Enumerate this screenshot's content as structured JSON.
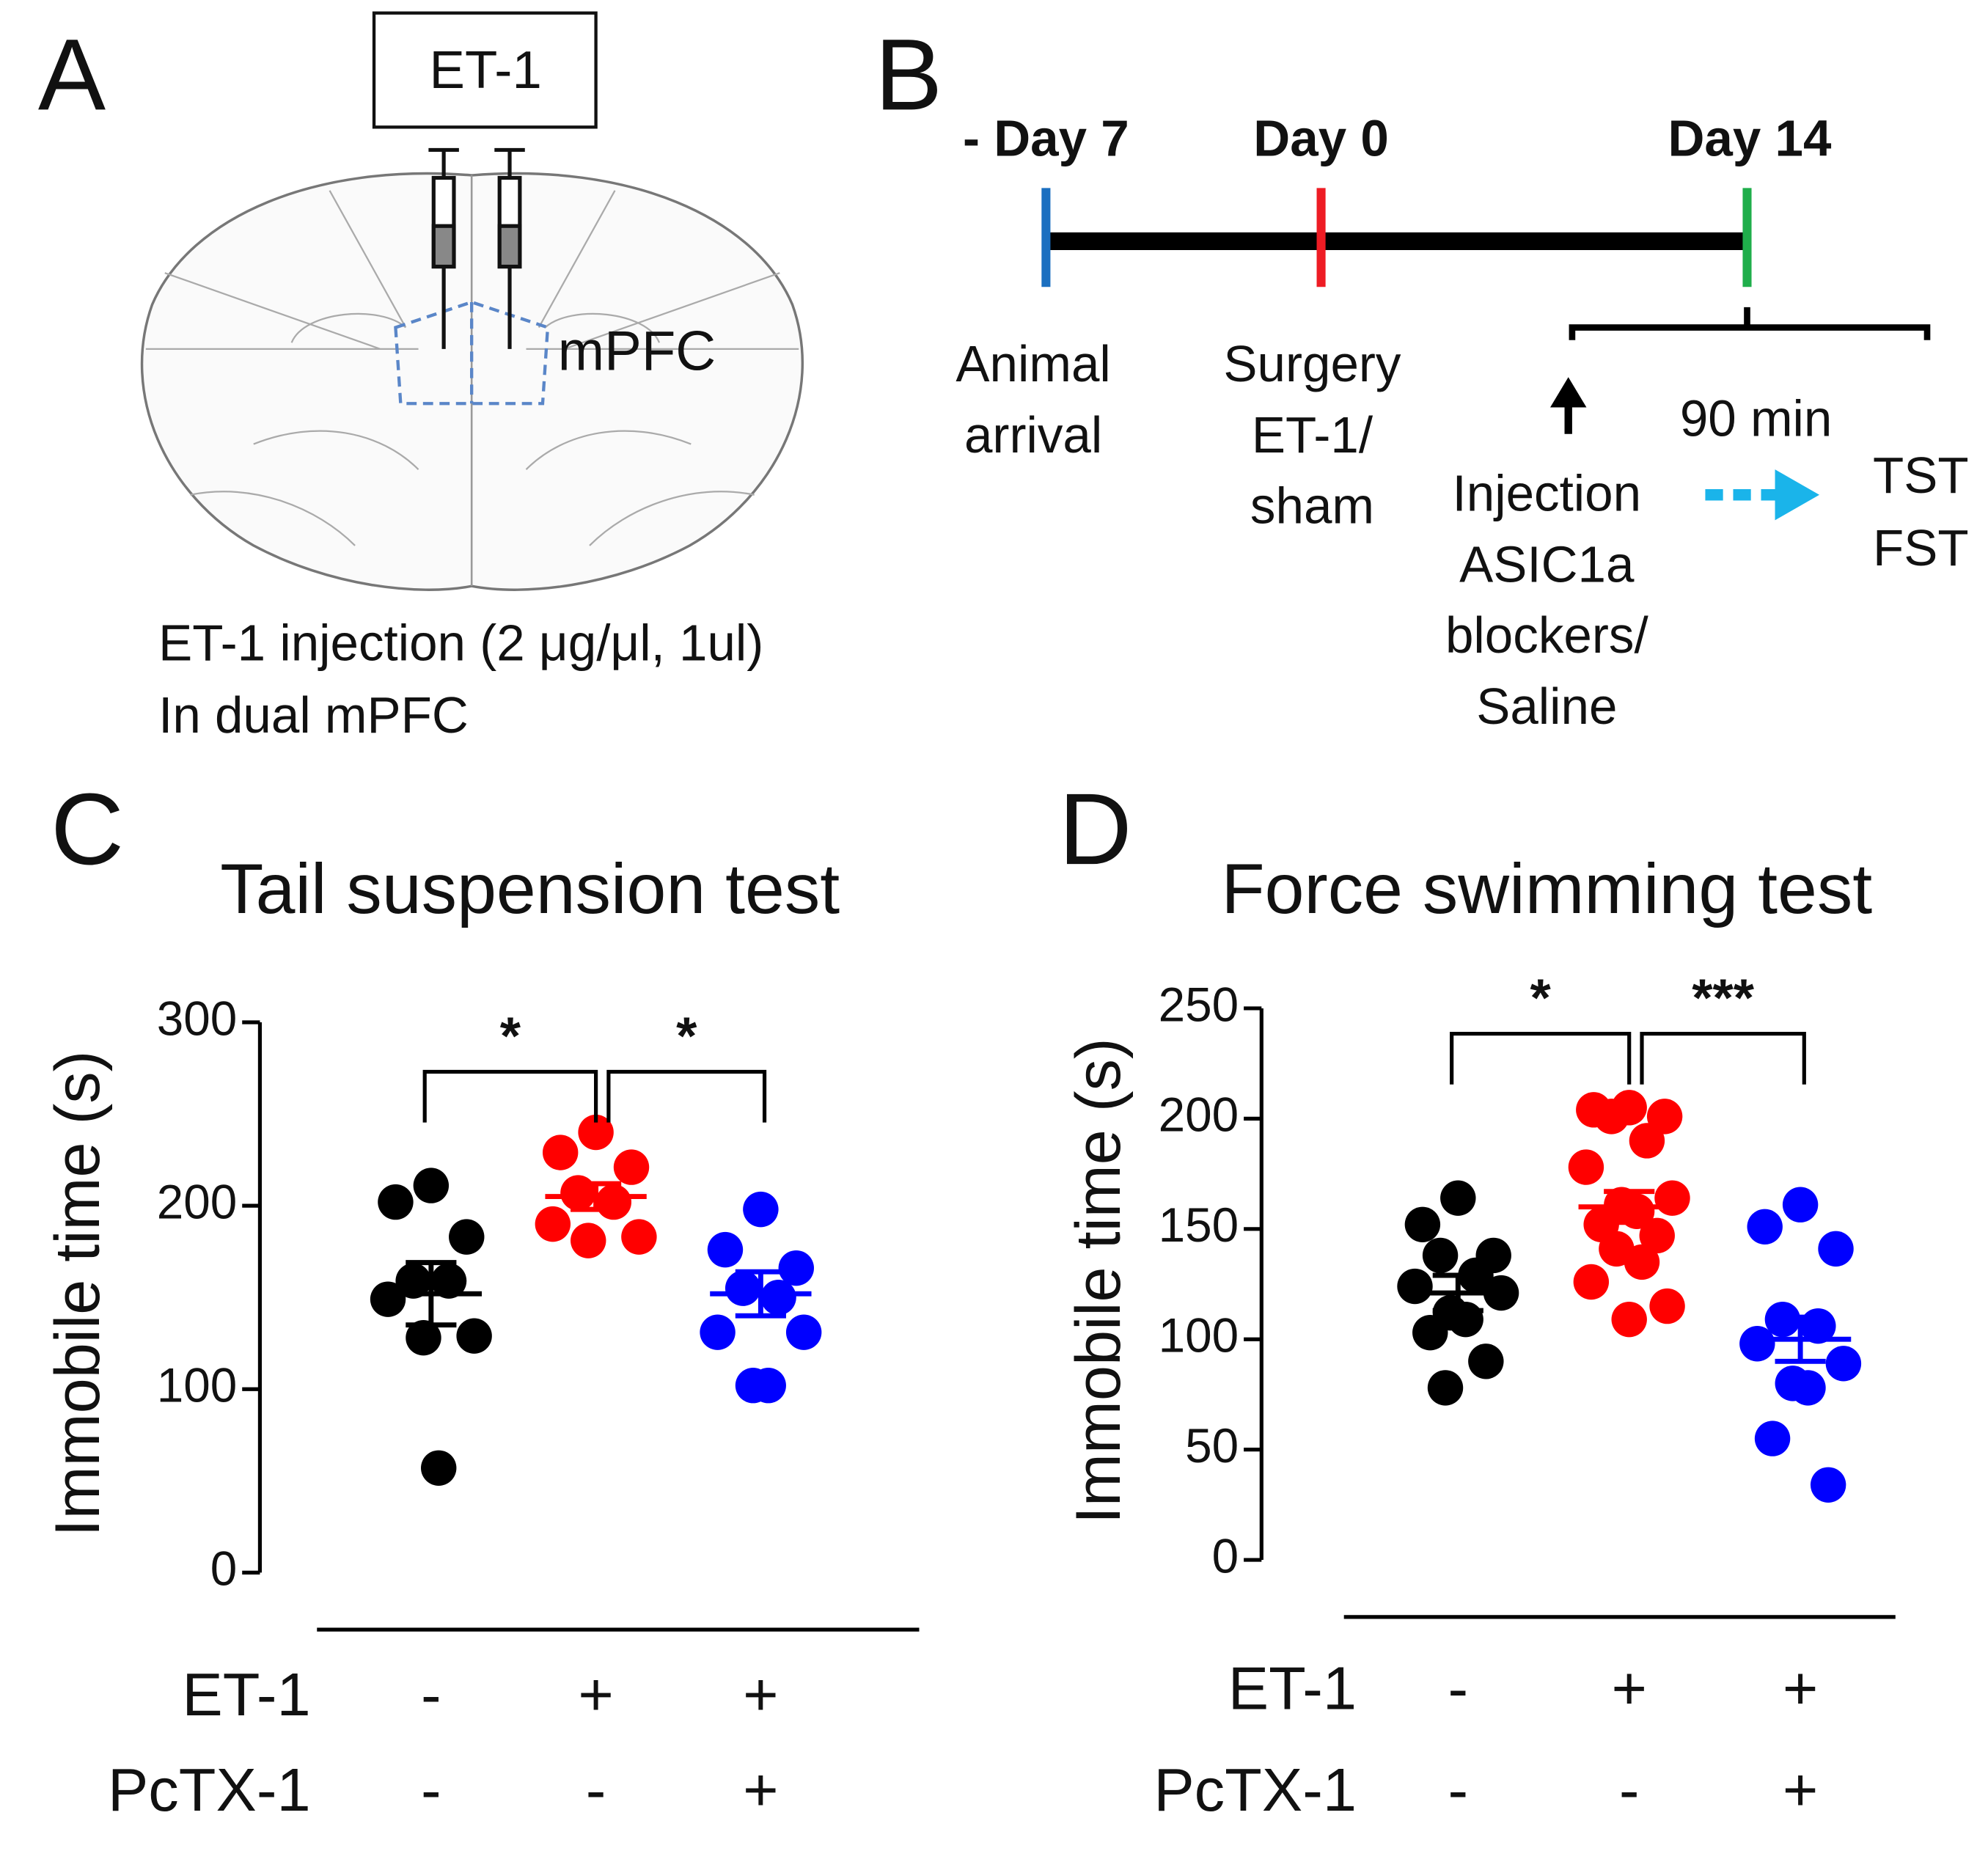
{
  "panel_a": {
    "label": "A",
    "box": "ET-1",
    "region": "mPFC",
    "caption": [
      "ET-1 injection (2 μg/μl, 1ul)",
      "In dual mPFC"
    ]
  },
  "panel_b": {
    "label": "B",
    "days": [
      {
        "text": "- Day 7",
        "color": "#1b6fc0"
      },
      {
        "text": "Day 0",
        "color": "#ee1c24"
      },
      {
        "text": "Day 14",
        "color": "#1fae4b"
      }
    ],
    "events": [
      [
        "Animal",
        "arrival"
      ],
      [
        "Surgery",
        "ET-1/",
        "sham"
      ],
      [
        "Injection",
        "ASIC1a",
        "blockers/",
        "Saline"
      ]
    ],
    "interval": "90 min",
    "interval_color": "#1ab4ea",
    "tests": [
      "TST",
      "FST"
    ]
  },
  "chart_data": [
    {
      "type": "scatter",
      "panel": "C",
      "title": "Tail suspension test",
      "y_label": "Immobile time (s)",
      "ylim": [
        0,
        300
      ],
      "yticks": [
        0,
        100,
        200,
        300
      ],
      "rows": [
        {
          "label": "ET-1",
          "values": [
            "-",
            "+",
            "+"
          ]
        },
        {
          "label": "PcTX-1",
          "values": [
            "-",
            "-",
            "+"
          ]
        }
      ],
      "groups": [
        {
          "color": "#000000",
          "values": [
            211,
            202,
            183,
            159,
            159,
            149,
            129,
            128,
            57
          ],
          "mean": 152,
          "sem": 17
        },
        {
          "color": "#ff0000",
          "values": [
            240,
            229,
            221,
            207,
            202,
            190,
            183,
            181
          ],
          "mean": 205,
          "sem": 7
        },
        {
          "color": "#0000ff",
          "values": [
            198,
            176,
            166,
            155,
            150,
            131,
            131,
            102,
            102
          ],
          "mean": 152,
          "sem": 12
        }
      ],
      "significance": [
        "*",
        "*"
      ]
    },
    {
      "type": "scatter",
      "panel": "D",
      "title": "Force swimming test",
      "y_label": "Immobile time (s)",
      "ylim": [
        0,
        250
      ],
      "yticks": [
        0,
        50,
        100,
        150,
        200,
        250
      ],
      "rows": [
        {
          "label": "ET-1",
          "values": [
            "-",
            "+",
            "+"
          ]
        },
        {
          "label": "PcTX-1",
          "values": [
            "-",
            "-",
            "+"
          ]
        }
      ],
      "groups": [
        {
          "color": "#000000",
          "values": [
            164,
            152,
            138,
            138,
            129,
            124,
            121,
            112,
            109,
            103,
            90,
            78
          ],
          "mean": 121,
          "sem": 8
        },
        {
          "color": "#ff0000",
          "values": [
            205,
            204,
            201,
            201,
            190,
            178,
            164,
            161,
            158,
            152,
            147,
            141,
            135,
            126,
            115,
            109
          ],
          "mean": 160,
          "sem": 7
        },
        {
          "color": "#0000ff",
          "values": [
            161,
            151,
            141,
            109,
            106,
            98,
            89,
            80,
            78,
            55,
            34
          ],
          "mean": 100,
          "sem": 10
        }
      ],
      "significance": [
        "*",
        "***"
      ]
    }
  ]
}
